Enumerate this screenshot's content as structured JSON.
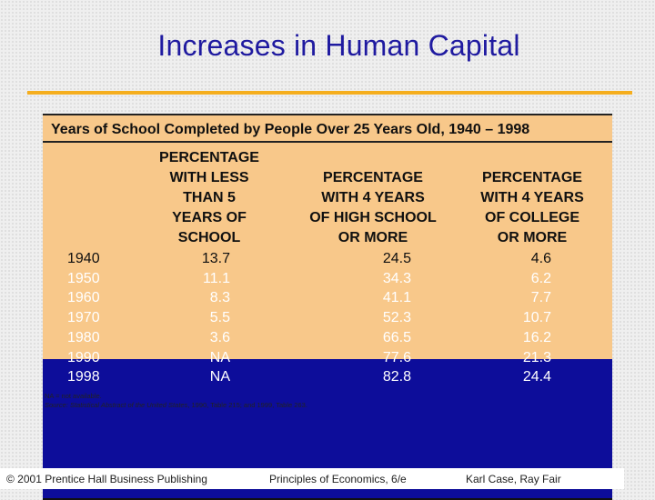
{
  "slide": {
    "title": "Increases in Human Capital"
  },
  "table": {
    "caption": "Years of School Completed by People Over 25 Years Old, 1940 – 1998",
    "columns": [
      "PERCENTAGE\nWITH LESS\nTHAN 5\nYEARS OF\nSCHOOL",
      "PERCENTAGE\nWITH 4 YEARS\nOF HIGH SCHOOL\nOR MORE",
      "PERCENTAGE\nWITH 4 YEARS\nOF COLLEGE\nOR MORE"
    ],
    "rows": [
      {
        "year": "1940",
        "less_than_5": "13.7",
        "high_school": "24.5",
        "college": "4.6"
      },
      {
        "year": "1950",
        "less_than_5": "11.1",
        "high_school": "34.3",
        "college": "6.2"
      },
      {
        "year": "1960",
        "less_than_5": "8.3",
        "high_school": "41.1",
        "college": "7.7"
      },
      {
        "year": "1970",
        "less_than_5": "5.5",
        "high_school": "52.3",
        "college": "10.7"
      },
      {
        "year": "1980",
        "less_than_5": "3.6",
        "high_school": "66.5",
        "college": "16.2"
      },
      {
        "year": "1990",
        "less_than_5": "NA",
        "high_school": "77.6",
        "college": "21.3"
      },
      {
        "year": "1998",
        "less_than_5": "NA",
        "high_school": "82.8",
        "college": "24.4"
      }
    ],
    "note_na": "NA = not available.",
    "source_label": "Source:",
    "source_title": "Statistical Abstract of the United States",
    "source_rest": ", 1990, Table 215; and 1999, Table 263."
  },
  "footer": {
    "copyright": "© 2001 Prentice Hall Business Publishing",
    "book": "Principles of Economics, 6/e",
    "authors": "Karl Case, Ray Fair"
  }
}
